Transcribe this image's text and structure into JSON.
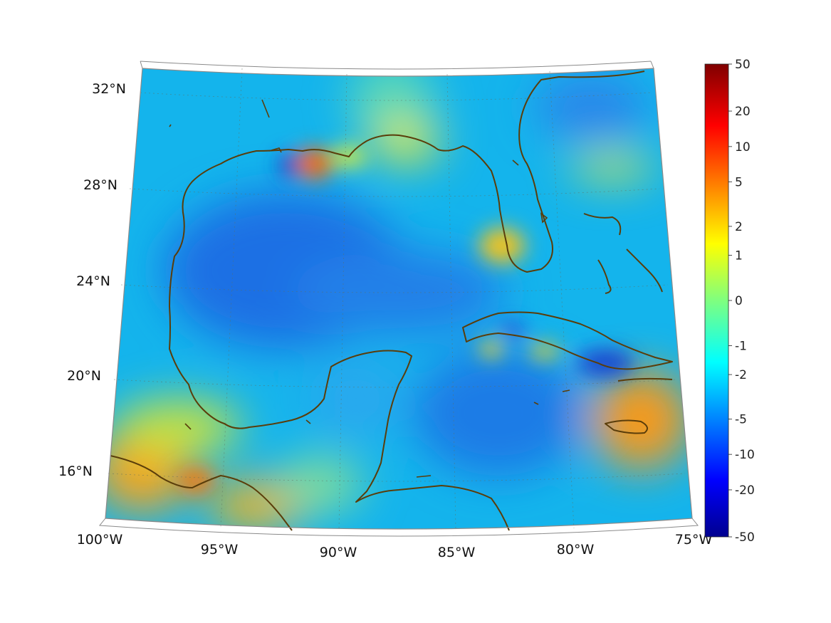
{
  "map": {
    "projection": "conic",
    "lon_range": [
      -100,
      -75
    ],
    "lat_range": [
      14,
      33
    ],
    "lon_labels": [
      "100°W",
      "95°W",
      "90°W",
      "85°W",
      "80°W",
      "75°W"
    ],
    "lat_labels": [
      "32°N",
      "28°N",
      "24°N",
      "20°N",
      "16°N"
    ],
    "coastline_color": "#5a3d0a",
    "graticule": "dotted"
  },
  "colorbar": {
    "colormap": "jet",
    "orientation": "vertical",
    "ticks": [
      "50",
      "20",
      "10",
      "5",
      "2",
      "1",
      "0",
      "-1",
      "-2",
      "-5",
      "-10",
      "-20",
      "-50"
    ],
    "range": [
      -50,
      50
    ],
    "scale": "symmetric-log"
  }
}
